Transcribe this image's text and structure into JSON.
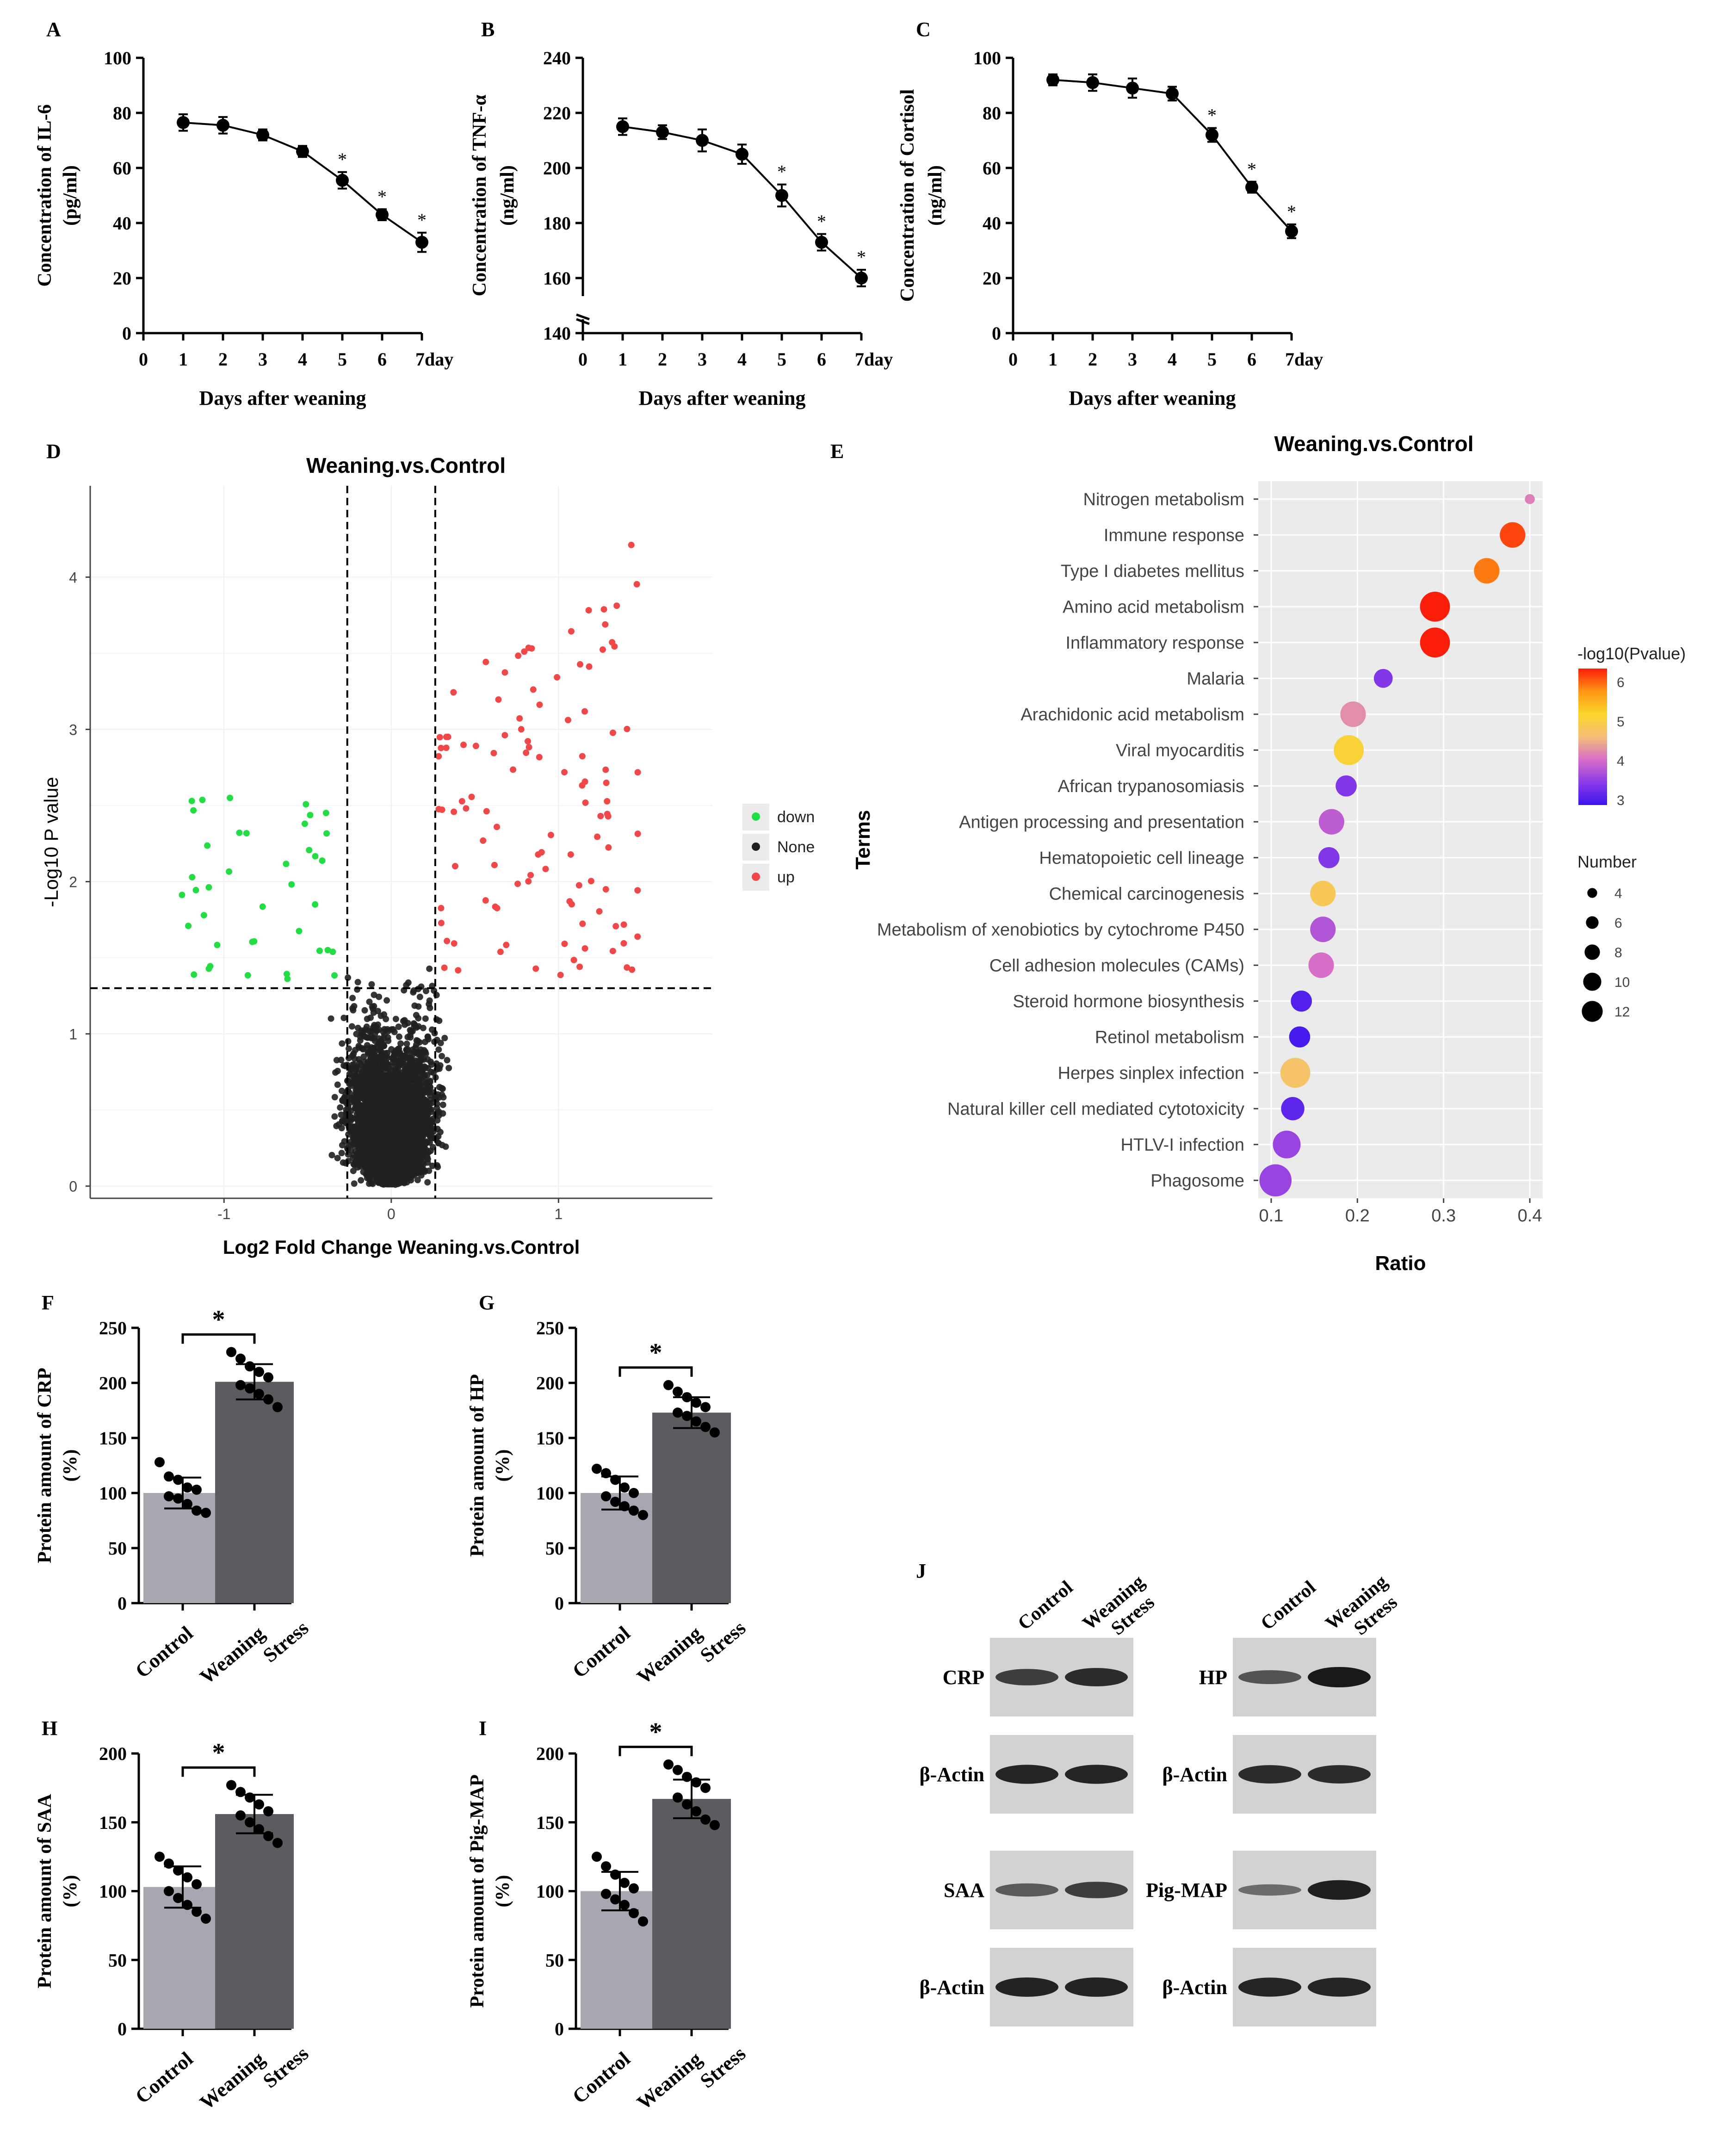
{
  "chart_data": [
    {
      "id": "A",
      "panel_label": "A",
      "type": "line",
      "ylabel": "Concentration of IL-6",
      "yunit": "(pg/ml)",
      "xlabel": "Days after weaning",
      "x": [
        1,
        2,
        3,
        4,
        5,
        6,
        7
      ],
      "values": [
        76.5,
        75.5,
        72,
        66,
        55.5,
        43,
        33
      ],
      "errors": [
        3,
        3,
        2,
        2,
        3,
        2,
        3.5
      ],
      "stars": [
        false,
        false,
        false,
        false,
        true,
        true,
        true
      ],
      "star_text": "*",
      "ylim": [
        0,
        100
      ],
      "yticks": [
        "100",
        "80",
        "60",
        "40",
        "20",
        "0"
      ],
      "xticks": [
        "0",
        "1",
        "2",
        "3",
        "4",
        "5",
        "6",
        "7day"
      ]
    },
    {
      "id": "B",
      "panel_label": "B",
      "type": "line",
      "ylabel": "Concentration of TNF-α",
      "yunit": "(ng/ml)",
      "xlabel": "Days after weaning",
      "x": [
        1,
        2,
        3,
        4,
        5,
        6,
        7
      ],
      "values": [
        215,
        213,
        210,
        205,
        190,
        173,
        160
      ],
      "errors": [
        3,
        2.5,
        4,
        3.5,
        4,
        3,
        3
      ],
      "stars": [
        false,
        false,
        false,
        false,
        true,
        true,
        true
      ],
      "star_text": "*",
      "ylim": [
        140,
        240
      ],
      "yticks": [
        "240",
        "220",
        "200",
        "180",
        "160",
        "140"
      ],
      "xticks": [
        "0",
        "1",
        "2",
        "3",
        "4",
        "5",
        "6",
        "7day"
      ]
    },
    {
      "id": "C",
      "panel_label": "C",
      "type": "line",
      "ylabel": "Concentration of Cortisol",
      "yunit": "(ng/ml)",
      "xlabel": "Days after weaning",
      "x": [
        1,
        2,
        3,
        4,
        5,
        6,
        7
      ],
      "values": [
        92,
        91,
        89,
        87,
        72,
        53,
        37
      ],
      "errors": [
        2,
        3,
        3.5,
        2.5,
        2.5,
        2,
        2.5
      ],
      "stars": [
        false,
        false,
        false,
        false,
        true,
        true,
        true
      ],
      "star_text": "*",
      "ylim": [
        0,
        100
      ],
      "yticks": [
        "100",
        "80",
        "60",
        "40",
        "20",
        "0"
      ],
      "xticks": [
        "0",
        "1",
        "2",
        "3",
        "4",
        "5",
        "6",
        "7day"
      ]
    },
    {
      "id": "D",
      "panel_label": "D",
      "type": "scatter",
      "title": "Weaning.vs.Control",
      "xlabel": "Log2 Fold Change Weaning.vs.Control",
      "ylabel": "-Log10 P value",
      "xlim": [
        -1.8,
        1.92
      ],
      "ylim": [
        -0.08,
        4.6
      ],
      "xticks": [
        "-1",
        "0",
        "1"
      ],
      "yticks": [
        "0",
        "1",
        "2",
        "3",
        "4"
      ],
      "fc_cutoff": 0.263,
      "p_cutoff": 1.3,
      "legend": [
        "down",
        "None",
        "up"
      ],
      "colors": {
        "down": "#22dd44",
        "none": "#202020",
        "up": "#f04848"
      }
    },
    {
      "id": "E",
      "panel_label": "E",
      "type": "scatter",
      "title": "Weaning.vs.Control",
      "xlabel": "Ratio",
      "ylabel": "Terms",
      "xlim": [
        0.085,
        0.415
      ],
      "xticks": [
        "0.1",
        "0.2",
        "0.3",
        "0.4"
      ],
      "color_title": "-log10(Pvalue)",
      "color_ticks": [
        "6",
        "5",
        "4",
        "3"
      ],
      "size_title": "Number",
      "size_ticks": [
        "4",
        "6",
        "8",
        "10",
        "12"
      ],
      "terms": [
        "Nitrogen metabolism",
        "Immune response",
        "Type I diabetes mellitus",
        "Amino acid metabolism",
        "Inflammatory response",
        "Malaria",
        "Arachidonic acid metabolism",
        "Viral myocarditis",
        "African trypanosomiasis",
        "Antigen processing and presentation",
        "Hematopoietic cell lineage",
        "Chemical carcinogenesis",
        "Metabolism of xenobiotics by cytochrome P450",
        "Cell adhesion molecules (CAMs)",
        "Steroid hormone biosynthesis",
        "Retinol metabolism",
        "Herpes sinplex infection",
        "Natural killer cell mediated cytotoxicity",
        "HTLV-I infection",
        "Phagosome"
      ],
      "ratios": [
        0.4,
        0.38,
        0.35,
        0.29,
        0.29,
        0.23,
        0.195,
        0.19,
        0.187,
        0.17,
        0.167,
        0.16,
        0.16,
        0.158,
        0.135,
        0.133,
        0.128,
        0.125,
        0.118,
        0.105
      ],
      "neglog10p": [
        3.7,
        6.0,
        5.6,
        6.3,
        6.3,
        2.9,
        3.8,
        4.5,
        2.9,
        3.4,
        2.9,
        4.3,
        3.3,
        3.6,
        2.5,
        2.4,
        4.2,
        2.6,
        3.1,
        3.1
      ],
      "counts": [
        2,
        9,
        9,
        11,
        11,
        6,
        9,
        11,
        7,
        9,
        7,
        9,
        9,
        9,
        7,
        7,
        11,
        8,
        10,
        12
      ]
    },
    {
      "id": "F",
      "panel_label": "F",
      "type": "bar",
      "ylabel": "Protein amount of CRP",
      "yunit": "(%)",
      "categories": [
        "Control",
        "Weaning Stress"
      ],
      "values": [
        100,
        201
      ],
      "errors": [
        14,
        16
      ],
      "points": [
        [
          128,
          115,
          112,
          105,
          103,
          97,
          95,
          90,
          84,
          82
        ],
        [
          228,
          222,
          215,
          210,
          205,
          198,
          195,
          190,
          185,
          178
        ]
      ],
      "sig": "*",
      "ylim": [
        0,
        250
      ],
      "yticks": [
        "250",
        "200",
        "150",
        "100",
        "50",
        "0"
      ]
    },
    {
      "id": "G",
      "panel_label": "G",
      "type": "bar",
      "ylabel": "Protein amount of HP",
      "yunit": "(%)",
      "categories": [
        "Control",
        "Weaning Stress"
      ],
      "values": [
        100,
        173
      ],
      "errors": [
        15,
        14
      ],
      "points": [
        [
          122,
          118,
          112,
          105,
          100,
          97,
          92,
          88,
          84,
          80
        ],
        [
          198,
          192,
          187,
          182,
          178,
          173,
          170,
          165,
          160,
          155
        ]
      ],
      "sig": "*",
      "ylim": [
        0,
        250
      ],
      "yticks": [
        "250",
        "200",
        "150",
        "100",
        "50",
        "0"
      ]
    },
    {
      "id": "H",
      "panel_label": "H",
      "type": "bar",
      "ylabel": "Protein amount of SAA",
      "yunit": "(%)",
      "categories": [
        "Control",
        "Weaning Stress"
      ],
      "values": [
        103,
        156
      ],
      "errors": [
        15,
        14
      ],
      "points": [
        [
          125,
          120,
          115,
          110,
          105,
          100,
          95,
          90,
          85,
          80
        ],
        [
          177,
          172,
          168,
          163,
          158,
          155,
          150,
          145,
          140,
          135
        ]
      ],
      "sig": "*",
      "ylim": [
        0,
        200
      ],
      "yticks": [
        "200",
        "150",
        "100",
        "50",
        "0"
      ]
    },
    {
      "id": "I",
      "panel_label": "I",
      "type": "bar",
      "ylabel": "Protein amount of Pig-MAP",
      "yunit": "(%)",
      "categories": [
        "Control",
        "Weaning Stress"
      ],
      "values": [
        100,
        167
      ],
      "errors": [
        14,
        14
      ],
      "points": [
        [
          125,
          118,
          112,
          106,
          102,
          98,
          94,
          90,
          84,
          78
        ],
        [
          192,
          188,
          183,
          179,
          175,
          168,
          163,
          158,
          152,
          148
        ]
      ],
      "sig": "*",
      "ylim": [
        0,
        200
      ],
      "yticks": [
        "200",
        "150",
        "100",
        "50",
        "0"
      ]
    }
  ],
  "blot": {
    "panel_label": "J",
    "col_labels": [
      "Control",
      "Weaning Stress"
    ],
    "left": [
      {
        "label": "CRP",
        "bands": [
          0.7,
          0.85
        ]
      },
      {
        "label": "β-Actin",
        "bands": [
          0.9,
          0.9
        ]
      },
      {
        "label": "SAA",
        "bands": [
          0.45,
          0.7
        ]
      },
      {
        "label": "β-Actin",
        "bands": [
          0.92,
          0.92
        ]
      }
    ],
    "right": [
      {
        "label": "HP",
        "bands": [
          0.5,
          1.0
        ]
      },
      {
        "label": "β-Actin",
        "bands": [
          0.85,
          0.85
        ]
      },
      {
        "label": "Pig-MAP",
        "bands": [
          0.3,
          0.95
        ]
      },
      {
        "label": "β-Actin",
        "bands": [
          0.9,
          0.9
        ]
      }
    ]
  },
  "colors": {
    "control_bar": "#a7a7b1",
    "stress_bar": "#5c5c60",
    "axis": "#000000",
    "grid_bg": "#ebebeb"
  }
}
